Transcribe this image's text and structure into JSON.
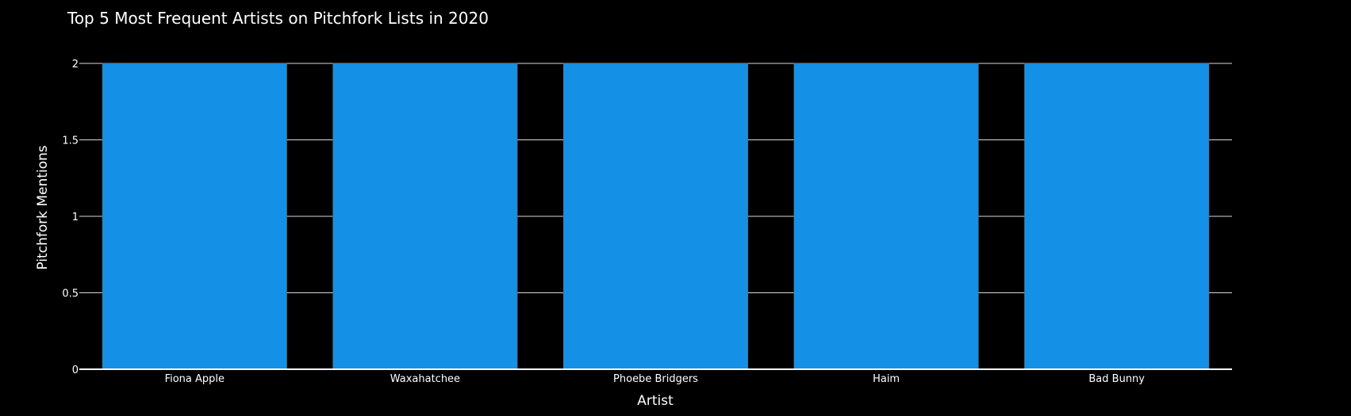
{
  "chart_data": {
    "type": "bar",
    "title": "Top 5 Most Frequent Artists on Pitchfork Lists in 2020",
    "xlabel": "Artist",
    "ylabel": "Pitchfork Mentions",
    "categories": [
      "Fiona Apple",
      "Waxahatchee",
      "Phoebe Bridgers",
      "Haim",
      "Bad Bunny"
    ],
    "values": [
      2,
      2,
      2,
      2,
      2
    ],
    "ylim": [
      0,
      2
    ],
    "yticks": [
      0,
      0.5,
      1,
      1.5,
      2
    ],
    "ytick_labels": [
      "0",
      "0.5",
      "1",
      "1.5",
      "2"
    ],
    "grid": true,
    "legend": "none",
    "colors": {
      "background": "#000000",
      "bar": "#1490e6",
      "text": "#ffffff",
      "grid": "#d9d9d9"
    }
  }
}
